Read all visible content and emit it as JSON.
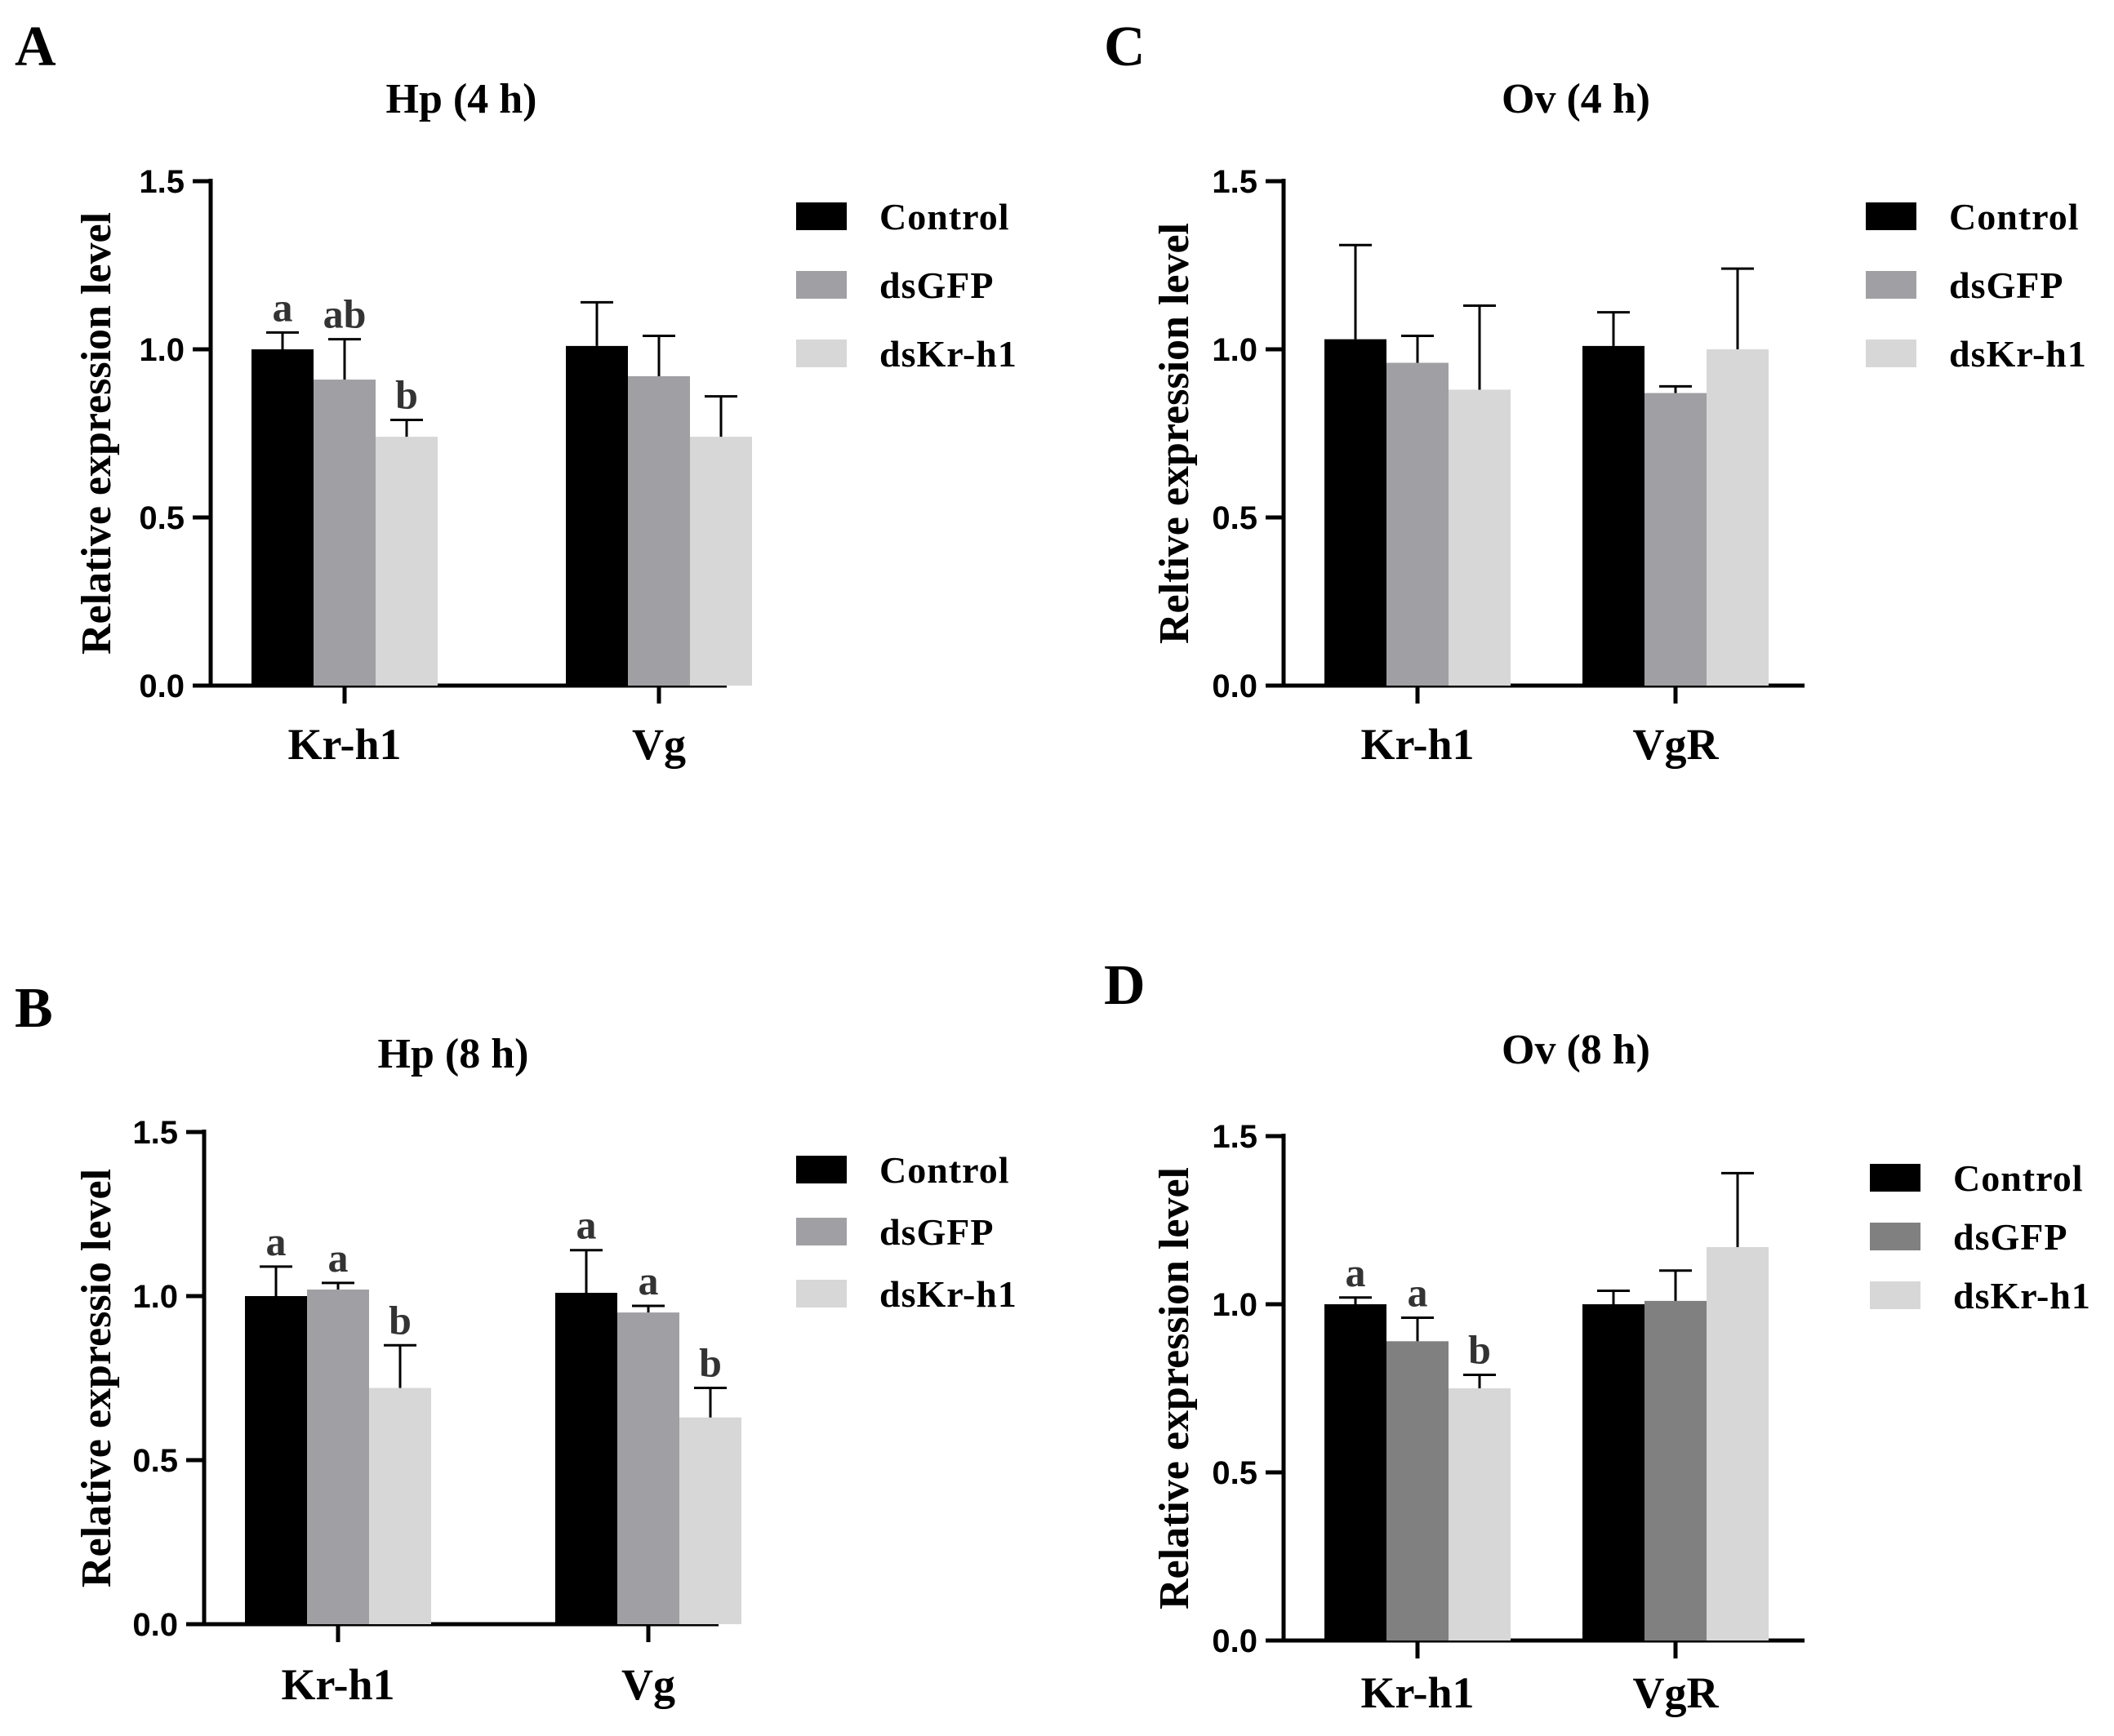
{
  "chart_data": [
    {
      "panel": "A",
      "type": "bar",
      "title": "Hp (4 h)",
      "ylabel": "Relative expression level",
      "xlabel": "",
      "ylim": [
        0,
        1.5
      ],
      "yticks": [
        "0.0",
        "0.5",
        "1.0",
        "1.5"
      ],
      "categories": [
        "Kr-h1",
        "Vg"
      ],
      "series": [
        {
          "name": "Control",
          "color": "#000000",
          "values": [
            1.0,
            1.01
          ],
          "errors": [
            0.05,
            0.13
          ],
          "labels": [
            "a",
            ""
          ]
        },
        {
          "name": "dsGFP",
          "color": "#a0a0a4",
          "values": [
            0.91,
            0.92
          ],
          "errors": [
            0.12,
            0.12
          ],
          "labels": [
            "ab",
            ""
          ]
        },
        {
          "name": "dsKr-h1",
          "color": "#d7d7d7",
          "values": [
            0.74,
            0.74
          ],
          "errors": [
            0.05,
            0.12
          ],
          "labels": [
            "b",
            ""
          ]
        }
      ],
      "legend": "top-right"
    },
    {
      "panel": "B",
      "type": "bar",
      "title": "Hp (8 h)",
      "ylabel": "Relative expressio level",
      "xlabel": "",
      "ylim": [
        0,
        1.5
      ],
      "yticks": [
        "0.0",
        "0.5",
        "1.0",
        "1.5"
      ],
      "categories": [
        "Kr-h1",
        "Vg"
      ],
      "series": [
        {
          "name": "Control",
          "color": "#000000",
          "values": [
            1.0,
            1.01
          ],
          "errors": [
            0.09,
            0.13
          ],
          "labels": [
            "a",
            "a"
          ]
        },
        {
          "name": "dsGFP",
          "color": "#a0a0a4",
          "values": [
            1.02,
            0.95
          ],
          "errors": [
            0.02,
            0.02
          ],
          "labels": [
            "a",
            "a"
          ]
        },
        {
          "name": "dsKr-h1",
          "color": "#d7d7d7",
          "values": [
            0.72,
            0.63
          ],
          "errors": [
            0.13,
            0.09
          ],
          "labels": [
            "b",
            "b"
          ]
        }
      ],
      "legend": "top-right"
    },
    {
      "panel": "C",
      "type": "bar",
      "title": "Ov (4 h)",
      "ylabel": "Reltive expression level",
      "xlabel": "",
      "ylim": [
        0,
        1.5
      ],
      "yticks": [
        "0.0",
        "0.5",
        "1.0",
        "1.5"
      ],
      "categories": [
        "Kr-h1",
        "VgR"
      ],
      "series": [
        {
          "name": "Control",
          "color": "#000000",
          "values": [
            1.03,
            1.01
          ],
          "errors": [
            0.28,
            0.1
          ],
          "labels": [
            "",
            ""
          ]
        },
        {
          "name": "dsGFP",
          "color": "#a0a0a4",
          "values": [
            0.96,
            0.87
          ],
          "errors": [
            0.08,
            0.02
          ],
          "labels": [
            "",
            ""
          ]
        },
        {
          "name": "dsKr-h1",
          "color": "#d7d7d7",
          "values": [
            0.88,
            1.0
          ],
          "errors": [
            0.25,
            0.24
          ],
          "labels": [
            "",
            ""
          ]
        }
      ],
      "legend": "top-right"
    },
    {
      "panel": "D",
      "type": "bar",
      "title": "Ov (8 h)",
      "ylabel": "Relative expression level",
      "xlabel": "",
      "ylim": [
        0,
        1.5
      ],
      "yticks": [
        "0.0",
        "0.5",
        "1.0",
        "1.5"
      ],
      "categories": [
        "Kr-h1",
        "VgR"
      ],
      "series": [
        {
          "name": "Control",
          "color": "#000000",
          "values": [
            1.0,
            1.0
          ],
          "errors": [
            0.02,
            0.04
          ],
          "labels": [
            "a",
            ""
          ]
        },
        {
          "name": "dsGFP",
          "color": "#808080",
          "values": [
            0.89,
            1.01
          ],
          "errors": [
            0.07,
            0.09
          ],
          "labels": [
            "a",
            ""
          ]
        },
        {
          "name": "dsKr-h1",
          "color": "#d7d7d7",
          "values": [
            0.75,
            1.17
          ],
          "errors": [
            0.04,
            0.22
          ],
          "labels": [
            "b",
            ""
          ]
        }
      ],
      "legend": "top-right"
    }
  ]
}
